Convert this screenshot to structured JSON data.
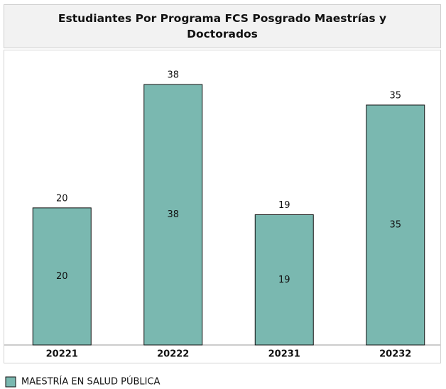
{
  "chart_data": {
    "type": "bar",
    "title": "Estudiantes Por Programa FCS Posgrado Maestrías  y Doctorados",
    "categories": [
      "20221",
      "20222",
      "20231",
      "20232"
    ],
    "values": [
      20,
      38,
      19,
      35
    ],
    "series_name": "MAESTRÍA EN SALUD PÚBLICA",
    "color": "#7ab8b0",
    "legend": "bottom-left"
  }
}
